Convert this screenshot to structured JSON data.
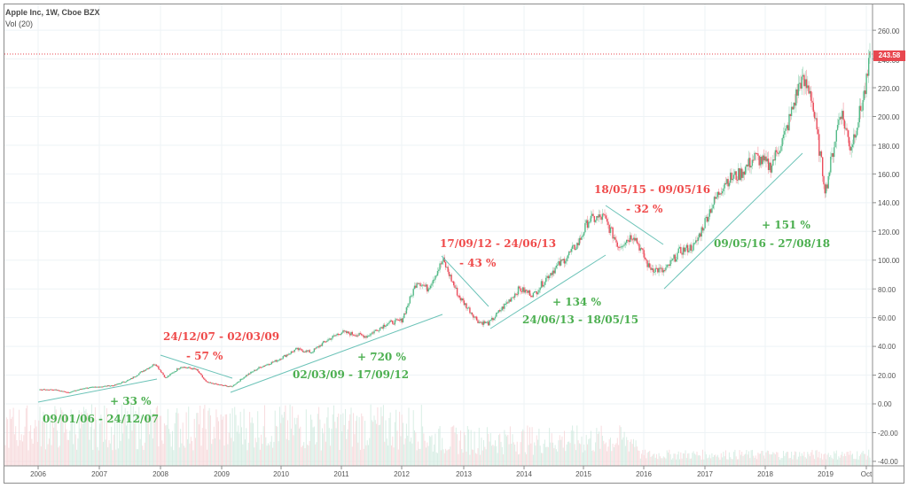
{
  "chart_data": {
    "type": "candlestick",
    "title": "Apple Inc, 1W, Cboe BZX",
    "subtitle": "Vol (20)",
    "symbol": "Apple Inc",
    "interval": "1W",
    "exchange": "Cboe BZX",
    "indicator": "Vol (20)",
    "last_price": "243.58",
    "y_ticks": [
      "260.00",
      "240.00",
      "220.00",
      "200.00",
      "180.00",
      "160.00",
      "140.00",
      "120.00",
      "100.00",
      "80.00",
      "60.00",
      "40.00",
      "20.00",
      "0.00",
      "-20.00",
      "-40.00"
    ],
    "x_ticks": [
      "2006",
      "2007",
      "2008",
      "2009",
      "2010",
      "2011",
      "2012",
      "2013",
      "2014",
      "2015",
      "2016",
      "2017",
      "2018",
      "2019",
      "Oct"
    ],
    "ylim": [
      -45,
      280
    ],
    "grid": true,
    "price_path": [
      {
        "t": "2005-10",
        "v": 7
      },
      {
        "t": "2006-01",
        "v": 10
      },
      {
        "t": "2006-04",
        "v": 10
      },
      {
        "t": "2006-07",
        "v": 8
      },
      {
        "t": "2006-10",
        "v": 11
      },
      {
        "t": "2007-01",
        "v": 12
      },
      {
        "t": "2007-04",
        "v": 13
      },
      {
        "t": "2007-07",
        "v": 17
      },
      {
        "t": "2007-10",
        "v": 24
      },
      {
        "t": "2007-12",
        "v": 28
      },
      {
        "t": "2008-02",
        "v": 18
      },
      {
        "t": "2008-05",
        "v": 26
      },
      {
        "t": "2008-08",
        "v": 24
      },
      {
        "t": "2008-10",
        "v": 15
      },
      {
        "t": "2009-01",
        "v": 13
      },
      {
        "t": "2009-03",
        "v": 12
      },
      {
        "t": "2009-06",
        "v": 20
      },
      {
        "t": "2009-09",
        "v": 26
      },
      {
        "t": "2009-12",
        "v": 30
      },
      {
        "t": "2010-04",
        "v": 38
      },
      {
        "t": "2010-07",
        "v": 36
      },
      {
        "t": "2010-10",
        "v": 44
      },
      {
        "t": "2011-01",
        "v": 50
      },
      {
        "t": "2011-06",
        "v": 47
      },
      {
        "t": "2011-10",
        "v": 56
      },
      {
        "t": "2012-01",
        "v": 58
      },
      {
        "t": "2012-04",
        "v": 86
      },
      {
        "t": "2012-06",
        "v": 80
      },
      {
        "t": "2012-09",
        "v": 100
      },
      {
        "t": "2012-12",
        "v": 75
      },
      {
        "t": "2013-04",
        "v": 57
      },
      {
        "t": "2013-06",
        "v": 56
      },
      {
        "t": "2013-09",
        "v": 68
      },
      {
        "t": "2013-12",
        "v": 80
      },
      {
        "t": "2014-03",
        "v": 76
      },
      {
        "t": "2014-06",
        "v": 90
      },
      {
        "t": "2014-09",
        "v": 100
      },
      {
        "t": "2014-12",
        "v": 112
      },
      {
        "t": "2015-02",
        "v": 128
      },
      {
        "t": "2015-05",
        "v": 130
      },
      {
        "t": "2015-08",
        "v": 110
      },
      {
        "t": "2015-11",
        "v": 118
      },
      {
        "t": "2016-02",
        "v": 95
      },
      {
        "t": "2016-05",
        "v": 92
      },
      {
        "t": "2016-08",
        "v": 106
      },
      {
        "t": "2016-11",
        "v": 110
      },
      {
        "t": "2017-02",
        "v": 135
      },
      {
        "t": "2017-05",
        "v": 155
      },
      {
        "t": "2017-08",
        "v": 160
      },
      {
        "t": "2017-11",
        "v": 172
      },
      {
        "t": "2018-02",
        "v": 165
      },
      {
        "t": "2018-05",
        "v": 188
      },
      {
        "t": "2018-08",
        "v": 225
      },
      {
        "t": "2018-10",
        "v": 218
      },
      {
        "t": "2019-01",
        "v": 148
      },
      {
        "t": "2019-04",
        "v": 205
      },
      {
        "t": "2019-06",
        "v": 178
      },
      {
        "t": "2019-08",
        "v": 205
      },
      {
        "t": "2019-09",
        "v": 220
      },
      {
        "t": "2019-10",
        "v": 243.58
      }
    ],
    "trendlines": [
      {
        "label": "+ 33 %",
        "dates": "09/01/06 - 24/12/07",
        "direction": "up",
        "change_pct": 33
      },
      {
        "label": "- 57 %",
        "dates": "24/12/07 - 02/03/09",
        "direction": "down",
        "change_pct": -57
      },
      {
        "label": "+ 720 %",
        "dates": "02/03/09 - 17/09/12",
        "direction": "up",
        "change_pct": 720
      },
      {
        "label": "- 43 %",
        "dates": "17/09/12 - 24/06/13",
        "direction": "down",
        "change_pct": -43
      },
      {
        "label": "+ 134 %",
        "dates": "24/06/13 - 18/05/15",
        "direction": "up",
        "change_pct": 134
      },
      {
        "label": "- 32 %",
        "dates": "18/05/15 - 09/05/16",
        "direction": "down",
        "change_pct": -32
      },
      {
        "label": "+ 151 %",
        "dates": "09/05/16 - 27/08/18",
        "direction": "up",
        "change_pct": 151
      }
    ],
    "colors": {
      "up": "#53b987",
      "down": "#eb4d5c",
      "trendline": "#6cc3b8",
      "annotation_down": "#ef4a4a",
      "annotation_up": "#4caf50",
      "price_tag": "#e8474f"
    }
  },
  "legend": {
    "title": "Apple Inc, 1W, Cboe BZX",
    "indicator": "Vol (20)"
  },
  "price_tag": "243.58",
  "annotations": {
    "a1_pct": "+ 33 %",
    "a1_dates": "09/01/06 - 24/12/07",
    "a2_dates": "24/12/07 - 02/03/09",
    "a2_pct": "- 57 %",
    "a3_pct": "+ 720 %",
    "a3_dates": "02/03/09 - 17/09/12",
    "a4_dates": "17/09/12 - 24/06/13",
    "a4_pct": "- 43 %",
    "a5_pct": "+ 134 %",
    "a5_dates": "24/06/13 - 18/05/15",
    "a6_dates": "18/05/15 - 09/05/16",
    "a6_pct": "- 32 %",
    "a7_pct": "+ 151 %",
    "a7_dates": "09/05/16 - 27/08/18"
  },
  "yaxis": {
    "t260": "260.00",
    "t240": "240.00",
    "t220": "220.00",
    "t200": "200.00",
    "t180": "180.00",
    "t160": "160.00",
    "t140": "140.00",
    "t120": "120.00",
    "t100": "100.00",
    "t80": "80.00",
    "t60": "60.00",
    "t40": "40.00",
    "t20": "20.00",
    "t0": "0.00",
    "tm20": "-20.00",
    "tm40": "-40.00"
  },
  "xaxis": {
    "y2006": "2006",
    "y2007": "2007",
    "y2008": "2008",
    "y2009": "2009",
    "y2010": "2010",
    "y2011": "2011",
    "y2012": "2012",
    "y2013": "2013",
    "y2014": "2014",
    "y2015": "2015",
    "y2016": "2016",
    "y2017": "2017",
    "y2018": "2018",
    "y2019": "2019",
    "oct": "Oct"
  }
}
